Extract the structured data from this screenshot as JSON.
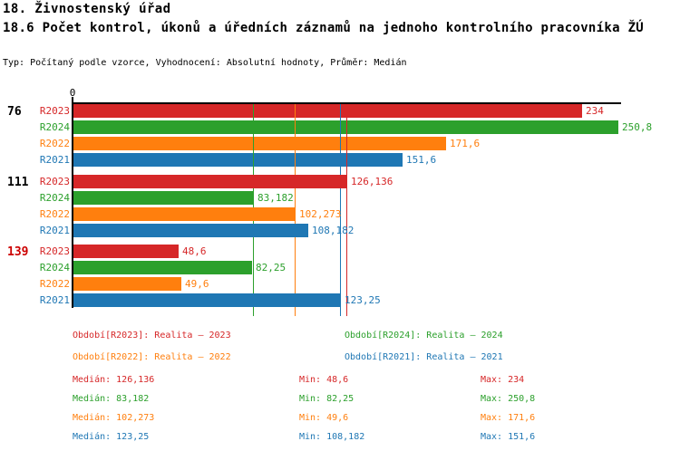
{
  "header": {
    "title": "18. Živnostenský úřad",
    "subtitle": "18.6 Počet kontrol, úkonů a úředních záznamů na jednoho kontrolního pracovníka ŽÚ",
    "meta": "Typ: Počítaný podle vzorce, Vyhodnocení: Absolutní hodnoty, Průměr: Medián"
  },
  "colors": {
    "R2023": "#d62728",
    "R2024": "#2ca02c",
    "R2022": "#ff7f0e",
    "R2021": "#1f77b4",
    "axis": "#000000",
    "highlight_label": "#cc0000"
  },
  "chart_data": {
    "type": "bar",
    "orientation": "horizontal",
    "axis": {
      "tick_label": "0",
      "min": 0,
      "max": 252.5,
      "grid": false
    },
    "series_order": [
      "R2023",
      "R2024",
      "R2022",
      "R2021"
    ],
    "groups": [
      {
        "label": "76",
        "label_color": "#000000",
        "bars": [
          {
            "series": "R2023",
            "value": 234,
            "display": "234"
          },
          {
            "series": "R2024",
            "value": 250.8,
            "display": "250,8"
          },
          {
            "series": "R2022",
            "value": 171.6,
            "display": "171,6"
          },
          {
            "series": "R2021",
            "value": 151.6,
            "display": "151,6"
          }
        ]
      },
      {
        "label": "111",
        "label_color": "#000000",
        "bars": [
          {
            "series": "R2023",
            "value": 126.136,
            "display": "126,136"
          },
          {
            "series": "R2024",
            "value": 83.182,
            "display": "83,182"
          },
          {
            "series": "R2022",
            "value": 102.273,
            "display": "102,273"
          },
          {
            "series": "R2021",
            "value": 108.182,
            "display": "108,182"
          }
        ]
      },
      {
        "label": "139",
        "label_color": "#cc0000",
        "bars": [
          {
            "series": "R2023",
            "value": 48.6,
            "display": "48,6"
          },
          {
            "series": "R2024",
            "value": 82.25,
            "display": "82,25"
          },
          {
            "series": "R2022",
            "value": 49.6,
            "display": "49,6"
          },
          {
            "series": "R2021",
            "value": 123.25,
            "display": "123,25"
          }
        ]
      }
    ],
    "median_lines": [
      {
        "series": "R2024",
        "value": 83.182
      },
      {
        "series": "R2022",
        "value": 102.273
      },
      {
        "series": "R2021",
        "value": 123.25
      },
      {
        "series": "R2023",
        "value": 126.136
      }
    ]
  },
  "legend": [
    {
      "series": "R2023",
      "label": "Období[R2023]: Realita – 2023"
    },
    {
      "series": "R2024",
      "label": "Období[R2024]: Realita – 2024"
    },
    {
      "series": "R2022",
      "label": "Období[R2022]: Realita – 2022"
    },
    {
      "series": "R2021",
      "label": "Období[R2021]: Realita – 2021"
    }
  ],
  "stats_labels": {
    "median": "Medián",
    "min": "Min",
    "max": "Max"
  },
  "stats": [
    {
      "series": "R2023",
      "median": "126,136",
      "min": "48,6",
      "max": "234"
    },
    {
      "series": "R2024",
      "median": "83,182",
      "min": "82,25",
      "max": "250,8"
    },
    {
      "series": "R2022",
      "median": "102,273",
      "min": "49,6",
      "max": "171,6"
    },
    {
      "series": "R2021",
      "median": "123,25",
      "min": "108,182",
      "max": "151,6"
    }
  ]
}
